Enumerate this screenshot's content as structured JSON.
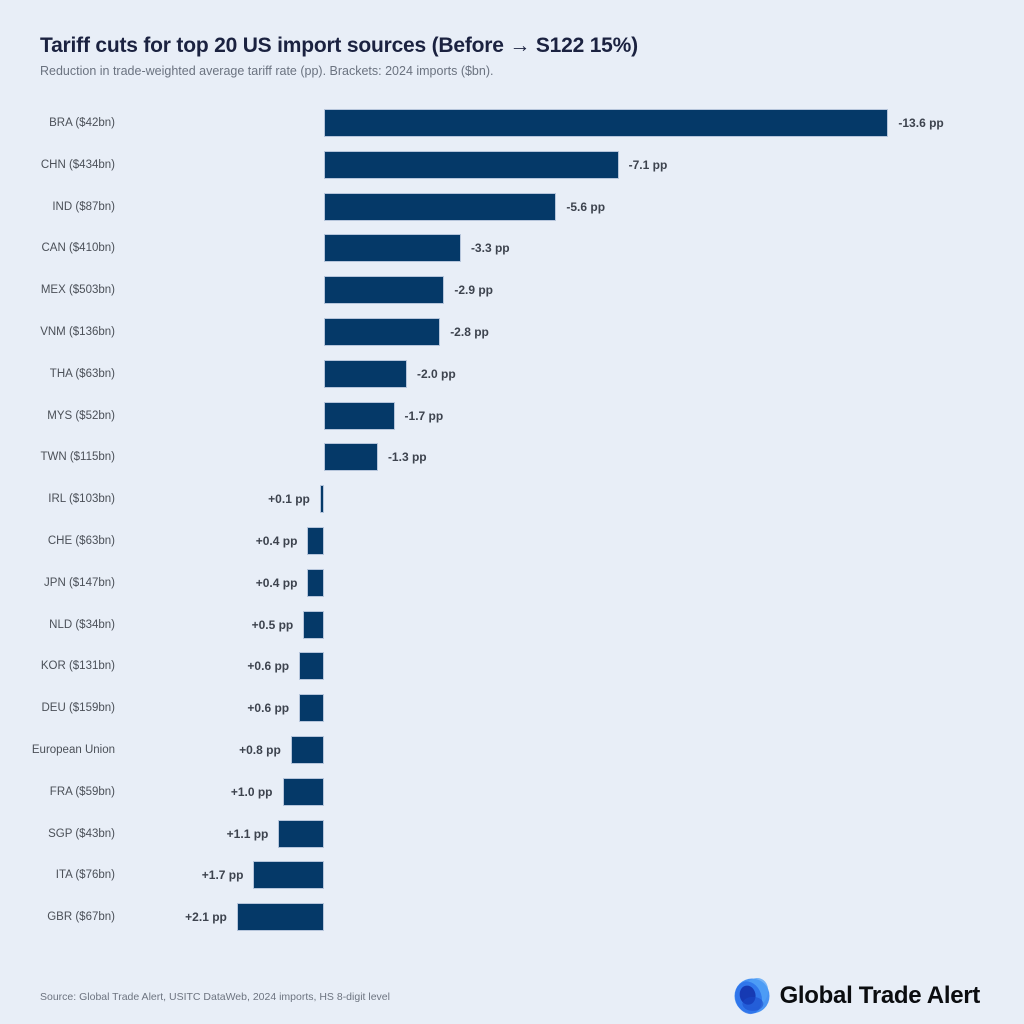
{
  "header": {
    "title": "Tariff cuts for top 20 US import sources (Before → S122 15%)",
    "subtitle": "Reduction in trade-weighted average tariff rate (pp). Brackets: 2024 imports ($bn)."
  },
  "footer": {
    "source": "Source: Global Trade Alert, USITC DataWeb, 2024 imports, HS 8-digit level",
    "brand": "Global Trade Alert"
  },
  "colors": {
    "background": "#e8eef7",
    "bar": "#053968",
    "bar_border": "#b6c5db",
    "title": "#1b2240",
    "subtitle": "#6b7380",
    "category_label": "#4b5058",
    "value_label": "#3d434e",
    "source": "#6d7480",
    "brand_text": "#0b0d10",
    "logo_blues": [
      "#3f8df2",
      "#4f9ff5",
      "#2a6fe8",
      "#1433ad",
      "#1a49c9"
    ]
  },
  "chart_data": {
    "type": "bar",
    "orientation": "horizontal",
    "title": "Tariff cuts for top 20 US import sources (Before → S122 15%)",
    "subtitle": "Reduction in trade-weighted average tariff rate (pp). Brackets: 2024 imports ($bn).",
    "unit": "pp",
    "negative_values_plotted": "rightward from zero baseline",
    "positive_values_plotted": "leftward from zero baseline",
    "grid": false,
    "legend": false,
    "axis_ticks_visible": false,
    "xlim_pp": [
      -13.6,
      2.1
    ],
    "categories": [
      "BRA ($42bn)",
      "CHN ($434bn)",
      "IND ($87bn)",
      "CAN ($410bn)",
      "MEX ($503bn)",
      "VNM ($136bn)",
      "THA ($63bn)",
      "MYS ($52bn)",
      "TWN ($115bn)",
      "IRL ($103bn)",
      "CHE ($63bn)",
      "JPN ($147bn)",
      "NLD ($34bn)",
      "KOR ($131bn)",
      "DEU ($159bn)",
      "European Union",
      "FRA ($59bn)",
      "SGP ($43bn)",
      "ITA ($76bn)",
      "GBR ($67bn)"
    ],
    "values": [
      -13.6,
      -7.1,
      -5.6,
      -3.3,
      -2.9,
      -2.8,
      -2.0,
      -1.7,
      -1.3,
      0.1,
      0.4,
      0.4,
      0.5,
      0.6,
      0.6,
      0.8,
      1.0,
      1.1,
      1.7,
      2.1
    ],
    "value_labels": [
      "-13.6 pp",
      "-7.1 pp",
      "-5.6 pp",
      "-3.3 pp",
      "-2.9 pp",
      "-2.8 pp",
      "-2.0 pp",
      "-1.7 pp",
      "-1.3 pp",
      "+0.1 pp",
      "+0.4 pp",
      "+0.4 pp",
      "+0.5 pp",
      "+0.6 pp",
      "+0.6 pp",
      "+0.8 pp",
      "+1.0 pp",
      "+1.1 pp",
      "+1.7 pp",
      "+2.1 pp"
    ]
  }
}
